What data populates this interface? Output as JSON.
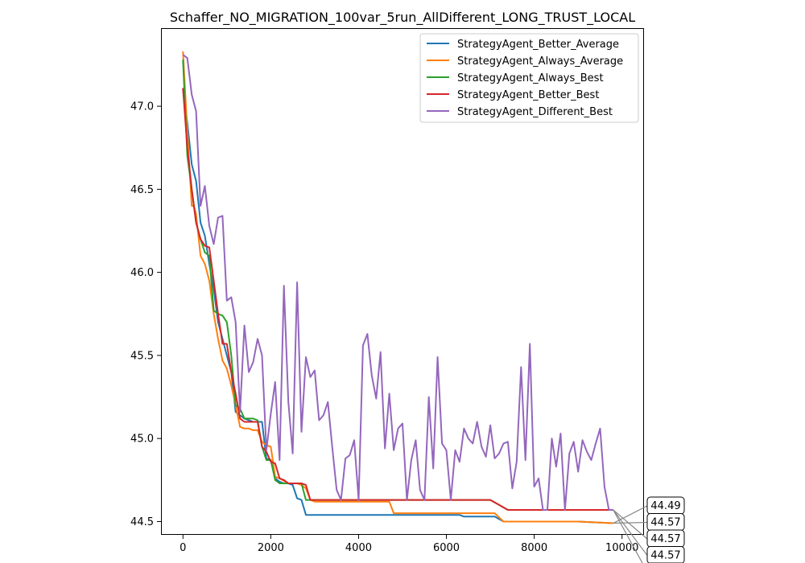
{
  "chart_data": {
    "type": "line",
    "title": "Schaffer_NO_MIGRATION_100var_5run_AllDifferent_LONG_TRUST_LOCAL",
    "xlabel": "",
    "ylabel": "",
    "xlim": [
      -500,
      10500
    ],
    "ylim": [
      44.42,
      47.47
    ],
    "xticks": [
      0,
      2000,
      4000,
      6000,
      8000,
      10000
    ],
    "xtick_labels": [
      "0",
      "2000",
      "4000",
      "6000",
      "8000",
      "10000"
    ],
    "yticks": [
      44.5,
      45.0,
      45.5,
      46.0,
      46.5,
      47.0
    ],
    "ytick_labels": [
      "44.5",
      "45.0",
      "45.5",
      "46.0",
      "46.5",
      "47.0"
    ],
    "legend_position": "top-right",
    "series": [
      {
        "name": "StrategyAgent_Better_Average",
        "color": "#1f77b4",
        "x": [
          0,
          100,
          200,
          300,
          400,
          500,
          600,
          700,
          800,
          900,
          1000,
          1100,
          1200,
          1300,
          1400,
          1500,
          1600,
          1700,
          1800,
          1900,
          2000,
          2100,
          2200,
          2300,
          2400,
          2500,
          2600,
          2700,
          2800,
          3000,
          3500,
          4000,
          4500,
          5000,
          5500,
          6000,
          6300,
          6400,
          6800,
          7100,
          7300,
          7500,
          8000,
          9000,
          9800
        ],
        "y": [
          47.1,
          46.9,
          46.65,
          46.55,
          46.3,
          46.22,
          46.05,
          45.9,
          45.7,
          45.6,
          45.5,
          45.4,
          45.16,
          45.14,
          45.12,
          45.11,
          45.1,
          45.1,
          45.1,
          44.88,
          44.87,
          44.76,
          44.74,
          44.73,
          44.73,
          44.72,
          44.64,
          44.63,
          44.54,
          44.54,
          44.54,
          44.54,
          44.54,
          44.54,
          44.54,
          44.54,
          44.54,
          44.53,
          44.53,
          44.53,
          44.5,
          44.5,
          44.5,
          44.5,
          44.49
        ]
      },
      {
        "name": "StrategyAgent_Always_Average",
        "color": "#ff7f0e",
        "x": [
          0,
          100,
          200,
          250,
          300,
          400,
          500,
          600,
          700,
          800,
          900,
          1000,
          1100,
          1200,
          1300,
          1400,
          1500,
          1600,
          1700,
          1800,
          1900,
          2000,
          2100,
          2200,
          2400,
          2600,
          2700,
          2800,
          2900,
          3000,
          3500,
          4000,
          4500,
          4700,
          4800,
          5500,
          6000,
          6500,
          7000,
          7100,
          7300,
          8000,
          9000,
          9800
        ],
        "y": [
          47.33,
          46.85,
          46.4,
          46.4,
          46.35,
          46.1,
          46.05,
          45.95,
          45.75,
          45.6,
          45.47,
          45.42,
          45.32,
          45.2,
          45.07,
          45.06,
          45.06,
          45.05,
          45.05,
          44.98,
          44.96,
          44.95,
          44.77,
          44.76,
          44.73,
          44.73,
          44.72,
          44.7,
          44.63,
          44.62,
          44.62,
          44.62,
          44.62,
          44.62,
          44.55,
          44.55,
          44.55,
          44.55,
          44.55,
          44.55,
          44.5,
          44.5,
          44.5,
          44.49
        ]
      },
      {
        "name": "StrategyAgent_Always_Best",
        "color": "#2ca02c",
        "x": [
          0,
          100,
          200,
          300,
          400,
          500,
          600,
          700,
          800,
          900,
          1000,
          1100,
          1200,
          1300,
          1400,
          1500,
          1600,
          1700,
          1800,
          1900,
          2000,
          2100,
          2200,
          2300,
          2400,
          2500,
          2600,
          2700,
          2800,
          3000,
          3500,
          4000,
          5000,
          6000,
          7000,
          7200,
          7400,
          8000,
          9000,
          9800
        ],
        "y": [
          47.28,
          46.7,
          46.5,
          46.3,
          46.2,
          46.12,
          46.1,
          45.77,
          45.75,
          45.74,
          45.7,
          45.5,
          45.2,
          45.18,
          45.12,
          45.12,
          45.12,
          45.11,
          44.95,
          44.87,
          44.87,
          44.75,
          44.73,
          44.73,
          44.73,
          44.73,
          44.73,
          44.73,
          44.63,
          44.63,
          44.63,
          44.63,
          44.63,
          44.63,
          44.63,
          44.6,
          44.57,
          44.57,
          44.57,
          44.57
        ]
      },
      {
        "name": "StrategyAgent_Better_Best",
        "color": "#d62728",
        "x": [
          0,
          100,
          200,
          300,
          400,
          500,
          600,
          700,
          800,
          900,
          1000,
          1100,
          1200,
          1300,
          1400,
          1500,
          1600,
          1700,
          1800,
          1900,
          2000,
          2100,
          2200,
          2300,
          2400,
          2500,
          2600,
          2700,
          2800,
          2900,
          3000,
          3500,
          4000,
          5000,
          6000,
          7000,
          7200,
          7400,
          8000,
          9000,
          9800
        ],
        "y": [
          47.11,
          46.75,
          46.5,
          46.3,
          46.2,
          46.16,
          46.15,
          45.95,
          45.75,
          45.57,
          45.57,
          45.4,
          45.27,
          45.12,
          45.1,
          45.1,
          45.1,
          45.1,
          44.95,
          44.92,
          44.86,
          44.85,
          44.76,
          44.75,
          44.73,
          44.73,
          44.73,
          44.73,
          44.72,
          44.63,
          44.63,
          44.63,
          44.63,
          44.63,
          44.63,
          44.63,
          44.6,
          44.57,
          44.57,
          44.57,
          44.57
        ]
      },
      {
        "name": "StrategyAgent_Different_Best",
        "color": "#9467bd",
        "x": [
          0,
          100,
          200,
          300,
          400,
          500,
          600,
          700,
          800,
          900,
          1000,
          1100,
          1200,
          1300,
          1400,
          1500,
          1600,
          1700,
          1800,
          1900,
          2000,
          2100,
          2200,
          2300,
          2400,
          2500,
          2600,
          2700,
          2800,
          2900,
          3000,
          3100,
          3200,
          3300,
          3400,
          3500,
          3600,
          3700,
          3800,
          3900,
          4000,
          4100,
          4200,
          4300,
          4400,
          4500,
          4600,
          4700,
          4800,
          4900,
          5000,
          5100,
          5200,
          5300,
          5400,
          5500,
          5600,
          5700,
          5800,
          5900,
          6000,
          6100,
          6200,
          6300,
          6400,
          6500,
          6600,
          6700,
          6800,
          6900,
          7000,
          7100,
          7200,
          7300,
          7400,
          7500,
          7600,
          7700,
          7800,
          7900,
          8000,
          8100,
          8200,
          8300,
          8400,
          8500,
          8600,
          8700,
          8800,
          8900,
          9000,
          9100,
          9200,
          9300,
          9400,
          9500,
          9600,
          9700,
          9800
        ],
        "y": [
          47.31,
          47.29,
          47.07,
          46.97,
          46.4,
          46.52,
          46.28,
          46.17,
          46.33,
          46.34,
          45.83,
          45.85,
          45.7,
          45.16,
          45.68,
          45.4,
          45.46,
          45.6,
          45.5,
          44.93,
          45.15,
          45.34,
          44.87,
          45.92,
          45.22,
          44.91,
          45.94,
          45.04,
          45.49,
          45.37,
          45.41,
          45.11,
          45.14,
          45.22,
          44.95,
          44.69,
          44.63,
          44.88,
          44.9,
          44.99,
          44.63,
          45.56,
          45.63,
          45.38,
          45.24,
          45.52,
          44.94,
          45.27,
          44.93,
          45.06,
          45.09,
          44.63,
          44.87,
          44.99,
          44.69,
          44.63,
          45.25,
          44.82,
          45.49,
          44.97,
          44.93,
          44.63,
          44.93,
          44.86,
          45.06,
          45.0,
          44.97,
          45.1,
          44.95,
          44.89,
          45.08,
          44.88,
          44.91,
          44.97,
          44.98,
          44.7,
          44.86,
          45.43,
          44.87,
          45.57,
          44.71,
          44.76,
          44.57,
          44.57,
          45.0,
          44.83,
          45.03,
          44.57,
          44.91,
          44.98,
          44.8,
          44.99,
          44.92,
          44.87,
          44.97,
          45.06,
          44.71,
          44.57,
          44.57
        ]
      }
    ],
    "annotations": [
      "44.49",
      "44.57",
      "44.57",
      "44.57",
      "44.57"
    ]
  }
}
